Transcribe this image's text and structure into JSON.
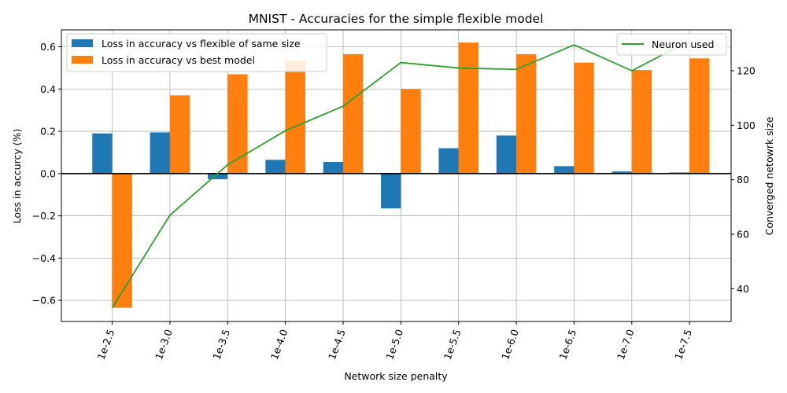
{
  "chart_data": {
    "type": "bar",
    "title": "MNIST - Accuracies for the simple flexible model",
    "xlabel": "Network size penalty",
    "ylabel": "Loss in accurcy (%)",
    "y2label": "Converged netowrk size",
    "categories": [
      "1e-2.5",
      "1e-3.0",
      "1e-3.5",
      "1e-4.0",
      "1e-4.5",
      "1e-5.0",
      "1e-5.5",
      "1e-6.0",
      "1e-6.5",
      "1e-7.0",
      "1e-7.5"
    ],
    "ylim": [
      -0.7,
      0.68
    ],
    "y2lim": [
      28,
      135
    ],
    "yticks": [
      "−0.6",
      "−0.4",
      "−0.2",
      "0.0",
      "0.2",
      "0.4",
      "0.6"
    ],
    "y2ticks": [
      "40",
      "60",
      "80",
      "100",
      "120"
    ],
    "grid": true,
    "legend_left_position": "upper-left",
    "legend_right_position": "upper-right",
    "series": [
      {
        "name": "Loss in accuracy vs flexible of same size",
        "color": "#1f77b4",
        "axis": "left",
        "kind": "bar",
        "values": [
          0.19,
          0.195,
          -0.027,
          0.065,
          0.055,
          -0.165,
          0.12,
          0.18,
          0.035,
          0.01,
          0.005
        ]
      },
      {
        "name": "Loss in accuracy vs best model",
        "color": "#ff7f0e",
        "axis": "left",
        "kind": "bar",
        "values": [
          -0.635,
          0.37,
          0.47,
          0.535,
          0.565,
          0.4,
          0.62,
          0.565,
          0.525,
          0.49,
          0.545
        ]
      },
      {
        "name": "Neuron used",
        "color": "#2ca02c",
        "axis": "right",
        "kind": "line",
        "values": [
          33,
          67,
          85.5,
          98,
          107,
          123,
          121,
          120.5,
          129.5,
          120,
          131
        ]
      }
    ]
  }
}
